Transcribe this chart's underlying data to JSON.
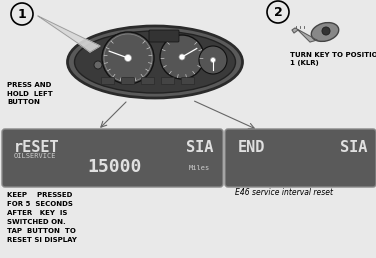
{
  "bg_color": "#e9e9e9",
  "step1_circle": "1",
  "step2_circle": "2",
  "press_hold_text": "PRESS AND\nHOLD  LEFT\nBUTTON",
  "turn_key_text": "TURN KEY TO POSITION\n1 (KLR)",
  "display1_bg": "#5a5a5a",
  "display1_line1_left": "rESET",
  "display1_line1_right": "SIA",
  "display1_line2": "OILSERVICE",
  "display1_line3_num": "15000",
  "display1_line3_unit": "Miles",
  "display2_bg": "#5a5a5a",
  "display2_line1_left": "END",
  "display2_line1_right": "SIA",
  "caption": "E46 service interval reset",
  "keep_pressed_text": "KEEP    PRESSED\nFOR 5  SECONDS\nAFTER   KEY  IS\nSWITCHED ON.",
  "tap_button_text": "TAP  BUTTON  TO\nRESET SI DISPLAY",
  "display_text_color": "#cccccc",
  "display_text_bright": "#e0e0e0"
}
